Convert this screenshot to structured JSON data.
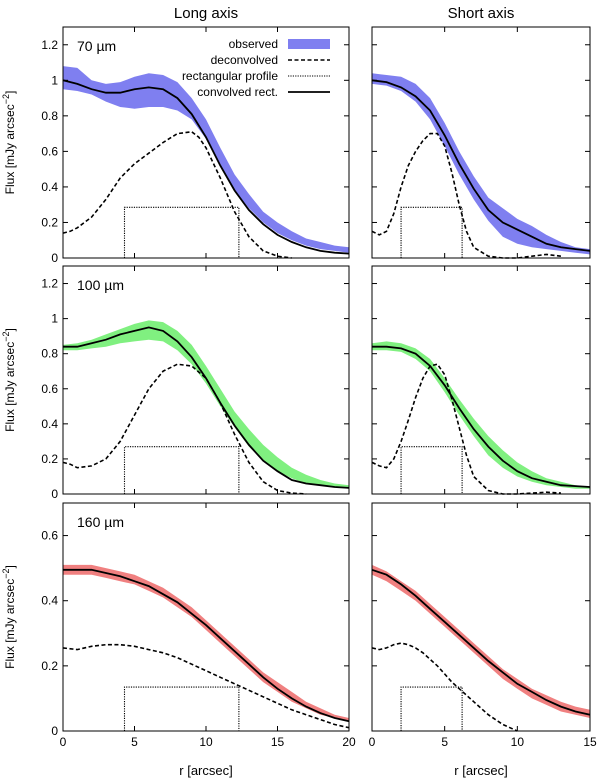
{
  "figure": {
    "col_titles": [
      "Long axis",
      "Short axis"
    ],
    "ylabel_prefix": "Flux [mJy arcsec",
    "ylabel_exp": "−2",
    "ylabel_suffix": "]",
    "xlabel": "r [arcsec]"
  },
  "legend": {
    "observed": "observed",
    "deconvolved": "deconvolved",
    "rect_profile": "rectangular profile",
    "convolved": "convolved rect."
  },
  "colors": {
    "70": "#7f7ff0",
    "100": "#80f080",
    "160": "#f08080"
  },
  "chart_data": [
    {
      "type": "line",
      "band": "70",
      "band_label": "70 µm",
      "axis": "Long axis",
      "xlim": [
        0,
        20
      ],
      "ylim": [
        0,
        1.3
      ],
      "xticks": [
        0,
        5,
        10,
        15,
        20
      ],
      "xtick_labels": [
        "0",
        "5",
        "10",
        "15",
        "20"
      ],
      "yticks": [
        0,
        0.2,
        0.4,
        0.6,
        0.8,
        1,
        1.2
      ],
      "ytick_labels": [
        "0",
        "0.2",
        "0.4",
        "0.6",
        "0.8",
        "1",
        "1.2"
      ],
      "observed": {
        "x": [
          0,
          1,
          2,
          3,
          4,
          5,
          6,
          7,
          8,
          9,
          10,
          11,
          12,
          13,
          14,
          15,
          16,
          17,
          18,
          19,
          20
        ],
        "lo": [
          0.95,
          0.94,
          0.92,
          0.88,
          0.85,
          0.84,
          0.85,
          0.85,
          0.83,
          0.78,
          0.67,
          0.52,
          0.38,
          0.28,
          0.2,
          0.14,
          0.1,
          0.07,
          0.05,
          0.04,
          0.03
        ],
        "hi": [
          1.08,
          1.07,
          1.0,
          0.98,
          0.99,
          1.02,
          1.04,
          1.03,
          0.99,
          0.9,
          0.78,
          0.62,
          0.47,
          0.36,
          0.26,
          0.2,
          0.15,
          0.11,
          0.09,
          0.07,
          0.06
        ]
      },
      "deconvolved": {
        "x": [
          0,
          0.5,
          1,
          2,
          3,
          4,
          5,
          6,
          7,
          8,
          9,
          9.5,
          10,
          11,
          12,
          13,
          14,
          15,
          16
        ],
        "y": [
          0.14,
          0.15,
          0.17,
          0.23,
          0.33,
          0.45,
          0.53,
          0.59,
          0.65,
          0.7,
          0.71,
          0.68,
          0.62,
          0.45,
          0.26,
          0.12,
          0.04,
          0.01,
          0
        ]
      },
      "rect": {
        "x0": 4.3,
        "x1": 12.3,
        "y": 0.285
      },
      "convolved": {
        "x": [
          0,
          1,
          2,
          3,
          4,
          5,
          6,
          7,
          8,
          9,
          10,
          11,
          12,
          13,
          14,
          15,
          16,
          17,
          18,
          19,
          20
        ],
        "y": [
          1.0,
          0.98,
          0.95,
          0.93,
          0.93,
          0.95,
          0.96,
          0.95,
          0.9,
          0.81,
          0.68,
          0.52,
          0.38,
          0.27,
          0.19,
          0.13,
          0.09,
          0.06,
          0.04,
          0.03,
          0.025
        ]
      }
    },
    {
      "type": "line",
      "band": "70",
      "band_label": "",
      "axis": "Short axis",
      "xlim": [
        0,
        15
      ],
      "ylim": [
        0,
        1.3
      ],
      "xticks": [
        0,
        5,
        10,
        15
      ],
      "xtick_labels": [
        "0",
        "5",
        "10",
        "15"
      ],
      "yticks": [
        0,
        0.2,
        0.4,
        0.6,
        0.8,
        1,
        1.2
      ],
      "ytick_labels": [],
      "observed": {
        "x": [
          0,
          1,
          2,
          3,
          4,
          5,
          6,
          7,
          8,
          9,
          10,
          11,
          12,
          13,
          14,
          15
        ],
        "lo": [
          0.98,
          0.97,
          0.94,
          0.88,
          0.78,
          0.63,
          0.47,
          0.33,
          0.21,
          0.12,
          0.08,
          0.06,
          0.05,
          0.04,
          0.03,
          0.02
        ],
        "hi": [
          1.04,
          1.03,
          1.02,
          0.98,
          0.9,
          0.76,
          0.6,
          0.46,
          0.34,
          0.28,
          0.22,
          0.18,
          0.13,
          0.09,
          0.06,
          0.05
        ]
      },
      "deconvolved": {
        "x": [
          0,
          0.5,
          1,
          1.5,
          2,
          2.5,
          3,
          3.5,
          4,
          4.5,
          5,
          5.5,
          6,
          6.5,
          7,
          8,
          9,
          10,
          11,
          12,
          13
        ],
        "y": [
          0.15,
          0.13,
          0.15,
          0.25,
          0.4,
          0.52,
          0.6,
          0.66,
          0.7,
          0.7,
          0.63,
          0.48,
          0.3,
          0.15,
          0.06,
          0.01,
          0,
          0,
          0.01,
          0.02,
          0.01
        ]
      },
      "rect": {
        "x0": 2.0,
        "x1": 6.2,
        "y": 0.285
      },
      "convolved": {
        "x": [
          0,
          1,
          2,
          3,
          4,
          5,
          6,
          7,
          8,
          9,
          10,
          11,
          12,
          13,
          14,
          15
        ],
        "y": [
          1.0,
          0.99,
          0.96,
          0.91,
          0.83,
          0.69,
          0.53,
          0.39,
          0.27,
          0.2,
          0.16,
          0.12,
          0.08,
          0.06,
          0.05,
          0.04
        ]
      }
    },
    {
      "type": "line",
      "band": "100",
      "band_label": "100 µm",
      "axis": "Long axis",
      "xlim": [
        0,
        20
      ],
      "ylim": [
        0,
        1.3
      ],
      "xticks": [
        0,
        5,
        10,
        15,
        20
      ],
      "xtick_labels": [
        "0",
        "5",
        "10",
        "15",
        "20"
      ],
      "yticks": [
        0,
        0.2,
        0.4,
        0.6,
        0.8,
        1,
        1.2
      ],
      "ytick_labels": [
        "0",
        "0.2",
        "0.4",
        "0.6",
        "0.8",
        "1",
        "1.2"
      ],
      "observed": {
        "x": [
          0,
          1,
          2,
          3,
          4,
          5,
          6,
          7,
          8,
          9,
          10,
          11,
          12,
          13,
          14,
          15,
          16,
          17,
          18,
          19,
          20
        ],
        "lo": [
          0.82,
          0.82,
          0.83,
          0.84,
          0.86,
          0.87,
          0.88,
          0.87,
          0.82,
          0.74,
          0.63,
          0.5,
          0.38,
          0.27,
          0.19,
          0.13,
          0.09,
          0.06,
          0.05,
          0.04,
          0.03
        ],
        "hi": [
          0.85,
          0.86,
          0.88,
          0.91,
          0.94,
          0.97,
          0.99,
          0.98,
          0.93,
          0.85,
          0.73,
          0.6,
          0.47,
          0.37,
          0.28,
          0.21,
          0.15,
          0.11,
          0.08,
          0.06,
          0.05
        ]
      },
      "deconvolved": {
        "x": [
          0,
          0.5,
          1,
          2,
          3,
          4,
          5,
          6,
          7,
          8,
          9,
          10,
          11,
          12,
          13,
          14,
          15,
          16,
          17
        ],
        "y": [
          0.18,
          0.17,
          0.15,
          0.16,
          0.2,
          0.3,
          0.45,
          0.6,
          0.7,
          0.74,
          0.73,
          0.66,
          0.52,
          0.34,
          0.18,
          0.07,
          0.02,
          0.005,
          0
        ]
      },
      "rect": {
        "x0": 4.3,
        "x1": 12.3,
        "y": 0.27
      },
      "convolved": {
        "x": [
          0,
          1,
          2,
          3,
          4,
          5,
          6,
          7,
          8,
          9,
          10,
          11,
          12,
          13,
          14,
          15,
          16,
          17,
          18,
          19,
          20
        ],
        "y": [
          0.84,
          0.84,
          0.86,
          0.88,
          0.91,
          0.93,
          0.95,
          0.93,
          0.87,
          0.78,
          0.66,
          0.52,
          0.39,
          0.28,
          0.19,
          0.13,
          0.08,
          0.06,
          0.05,
          0.04,
          0.035
        ]
      }
    },
    {
      "type": "line",
      "band": "100",
      "band_label": "",
      "axis": "Short axis",
      "xlim": [
        0,
        15
      ],
      "ylim": [
        0,
        1.3
      ],
      "xticks": [
        0,
        5,
        10,
        15
      ],
      "xtick_labels": [
        "0",
        "5",
        "10",
        "15"
      ],
      "yticks": [
        0,
        0.2,
        0.4,
        0.6,
        0.8,
        1,
        1.2
      ],
      "ytick_labels": [],
      "observed": {
        "x": [
          0,
          1,
          2,
          3,
          4,
          5,
          6,
          7,
          8,
          9,
          10,
          11,
          12,
          13,
          14,
          15
        ],
        "lo": [
          0.82,
          0.82,
          0.81,
          0.77,
          0.7,
          0.58,
          0.45,
          0.33,
          0.22,
          0.15,
          0.1,
          0.07,
          0.05,
          0.04,
          0.03,
          0.03
        ],
        "hi": [
          0.86,
          0.87,
          0.86,
          0.83,
          0.77,
          0.66,
          0.54,
          0.43,
          0.33,
          0.25,
          0.18,
          0.13,
          0.09,
          0.07,
          0.05,
          0.04
        ]
      },
      "deconvolved": {
        "x": [
          0,
          0.5,
          1,
          1.5,
          2,
          2.5,
          3,
          3.5,
          4,
          4.5,
          5,
          5.5,
          6,
          6.5,
          7,
          8,
          9,
          10,
          11,
          12,
          13
        ],
        "y": [
          0.18,
          0.16,
          0.15,
          0.2,
          0.3,
          0.42,
          0.55,
          0.66,
          0.73,
          0.74,
          0.68,
          0.54,
          0.38,
          0.22,
          0.1,
          0.02,
          0,
          0,
          0.005,
          0.01,
          0.005
        ]
      },
      "rect": {
        "x0": 2.0,
        "x1": 6.2,
        "y": 0.27
      },
      "convolved": {
        "x": [
          0,
          1,
          2,
          3,
          4,
          5,
          6,
          7,
          8,
          9,
          10,
          11,
          12,
          13,
          14,
          15
        ],
        "y": [
          0.84,
          0.84,
          0.83,
          0.8,
          0.73,
          0.62,
          0.49,
          0.37,
          0.27,
          0.19,
          0.13,
          0.09,
          0.07,
          0.05,
          0.045,
          0.04
        ]
      }
    },
    {
      "type": "line",
      "band": "160",
      "band_label": "160 µm",
      "axis": "Long axis",
      "xlim": [
        0,
        20
      ],
      "ylim": [
        0,
        0.7
      ],
      "xticks": [
        0,
        5,
        10,
        15,
        20
      ],
      "xtick_labels": [
        "0",
        "5",
        "10",
        "15",
        "20"
      ],
      "yticks": [
        0,
        0.2,
        0.4,
        0.6
      ],
      "ytick_labels": [
        "0",
        "0.2",
        "0.4",
        "0.6"
      ],
      "observed": {
        "x": [
          0,
          1,
          2,
          3,
          4,
          5,
          6,
          7,
          8,
          9,
          10,
          11,
          12,
          13,
          14,
          15,
          16,
          17,
          18,
          19,
          20
        ],
        "lo": [
          0.48,
          0.48,
          0.48,
          0.47,
          0.46,
          0.45,
          0.43,
          0.41,
          0.38,
          0.35,
          0.31,
          0.27,
          0.23,
          0.19,
          0.15,
          0.12,
          0.09,
          0.07,
          0.05,
          0.04,
          0.03
        ],
        "hi": [
          0.51,
          0.51,
          0.51,
          0.5,
          0.49,
          0.48,
          0.46,
          0.44,
          0.41,
          0.38,
          0.34,
          0.3,
          0.26,
          0.22,
          0.18,
          0.15,
          0.12,
          0.09,
          0.07,
          0.05,
          0.04
        ]
      },
      "deconvolved": {
        "x": [
          0,
          1,
          2,
          3,
          4,
          5,
          6,
          7,
          8,
          9,
          10,
          11,
          12,
          13,
          14,
          15,
          16,
          17,
          18,
          19,
          20
        ],
        "y": [
          0.255,
          0.25,
          0.26,
          0.265,
          0.265,
          0.26,
          0.25,
          0.24,
          0.225,
          0.205,
          0.185,
          0.165,
          0.145,
          0.125,
          0.105,
          0.085,
          0.065,
          0.05,
          0.035,
          0.02,
          0.01
        ]
      },
      "rect": {
        "x0": 4.3,
        "x1": 12.3,
        "y": 0.135
      },
      "convolved": {
        "x": [
          0,
          1,
          2,
          3,
          4,
          5,
          6,
          7,
          8,
          9,
          10,
          11,
          12,
          13,
          14,
          15,
          16,
          17,
          18,
          19,
          20
        ],
        "y": [
          0.495,
          0.495,
          0.495,
          0.485,
          0.475,
          0.46,
          0.445,
          0.42,
          0.395,
          0.36,
          0.325,
          0.285,
          0.245,
          0.205,
          0.165,
          0.13,
          0.1,
          0.075,
          0.055,
          0.04,
          0.03
        ]
      }
    },
    {
      "type": "line",
      "band": "160",
      "band_label": "",
      "axis": "Short axis",
      "xlim": [
        0,
        15
      ],
      "ylim": [
        0,
        0.7
      ],
      "xticks": [
        0,
        5,
        10,
        15
      ],
      "xtick_labels": [
        "0",
        "5",
        "10",
        "15"
      ],
      "yticks": [
        0,
        0.2,
        0.4,
        0.6
      ],
      "ytick_labels": [],
      "observed": {
        "x": [
          0,
          1,
          2,
          3,
          4,
          5,
          6,
          7,
          8,
          9,
          10,
          11,
          12,
          13,
          14,
          15
        ],
        "lo": [
          0.48,
          0.46,
          0.43,
          0.4,
          0.36,
          0.32,
          0.28,
          0.24,
          0.2,
          0.16,
          0.13,
          0.1,
          0.08,
          0.06,
          0.05,
          0.04
        ],
        "hi": [
          0.51,
          0.49,
          0.46,
          0.43,
          0.39,
          0.35,
          0.31,
          0.27,
          0.23,
          0.19,
          0.16,
          0.13,
          0.11,
          0.09,
          0.075,
          0.065
        ]
      },
      "deconvolved": {
        "x": [
          0,
          0.5,
          1,
          1.5,
          2,
          2.5,
          3,
          3.5,
          4,
          4.5,
          5,
          5.5,
          6,
          6.5,
          7,
          8,
          9,
          10
        ],
        "y": [
          0.255,
          0.25,
          0.255,
          0.265,
          0.27,
          0.265,
          0.255,
          0.24,
          0.22,
          0.2,
          0.175,
          0.15,
          0.13,
          0.11,
          0.09,
          0.05,
          0.02,
          0
        ]
      },
      "rect": {
        "x0": 2.0,
        "x1": 6.2,
        "y": 0.135
      },
      "convolved": {
        "x": [
          0,
          1,
          2,
          3,
          4,
          5,
          6,
          7,
          8,
          9,
          10,
          11,
          12,
          13,
          14,
          15
        ],
        "y": [
          0.495,
          0.48,
          0.45,
          0.415,
          0.375,
          0.335,
          0.295,
          0.255,
          0.215,
          0.18,
          0.145,
          0.12,
          0.095,
          0.075,
          0.06,
          0.05
        ]
      }
    }
  ]
}
